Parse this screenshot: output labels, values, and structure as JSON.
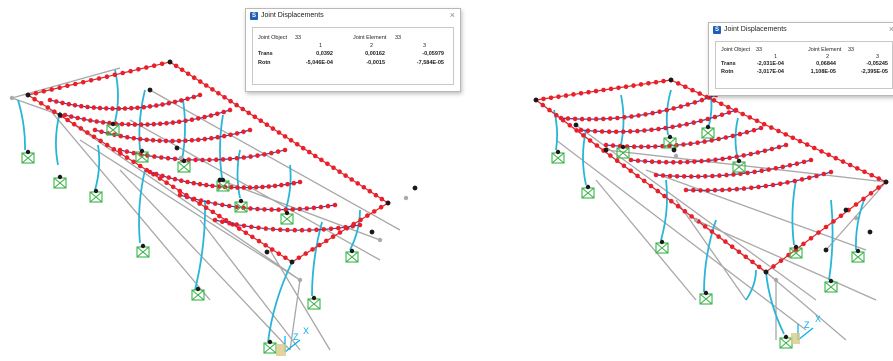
{
  "left": {
    "dialog": {
      "title": "Joint Displacements",
      "joint_object_label": "Joint Object",
      "joint_object_value": "33",
      "joint_element_label": "Joint Element",
      "joint_element_value": "33",
      "col1": "1",
      "col2": "2",
      "col3": "3",
      "trans_label": "Trans",
      "trans_values": [
        "0,0392",
        "0,00162",
        "-0,05979"
      ],
      "rotn_label": "Rotn",
      "rotn_values": [
        "-5,046E-04",
        "-0,0015",
        "-7,584E-05"
      ]
    },
    "axes": {
      "z": "Z",
      "x": "X"
    }
  },
  "right": {
    "dialog": {
      "title": "Joint Displacements",
      "joint_object_label": "Joint Object",
      "joint_object_value": "33",
      "joint_element_label": "Joint Element",
      "joint_element_value": "33",
      "col1": "1",
      "col2": "2",
      "col3": "3",
      "trans_label": "Trans",
      "trans_values": [
        "-2,031E-04",
        "0,06844",
        "-0,05245"
      ],
      "rotn_label": "Rotn",
      "rotn_values": [
        "-3,017E-04",
        "1,108E-05",
        "-2,395E-05"
      ]
    },
    "axes": {
      "z": "Z",
      "x": "X"
    }
  },
  "colors": {
    "frame_grey": "#a8a8a8",
    "deformed_red": "#e8202a",
    "deformed_blue": "#3b3fb0",
    "column_cyan": "#29b6d6",
    "support_green": "#3ab54a",
    "joint_black": "#1a1a1a"
  },
  "icons": [
    "support-icon",
    "joint-icon",
    "axis-triad-icon",
    "logo-icon",
    "close-icon"
  ]
}
